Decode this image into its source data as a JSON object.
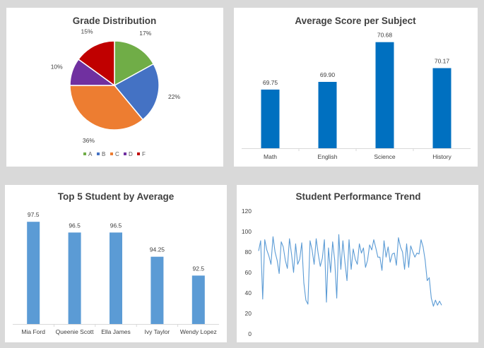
{
  "chart_data": [
    {
      "type": "pie",
      "title": "Grade Distribution",
      "categories": [
        "A",
        "B",
        "C",
        "D",
        "F"
      ],
      "values": [
        17,
        22,
        36,
        10,
        15
      ],
      "labels": [
        "17%",
        "22%",
        "36%",
        "10%",
        "15%"
      ],
      "colors": [
        "#70ad47",
        "#4472c4",
        "#ed7d31",
        "#7030a0",
        "#c00000"
      ],
      "legend": "bottom"
    },
    {
      "type": "bar",
      "title": "Average Score per Subject",
      "categories": [
        "Math",
        "English",
        "Science",
        "History"
      ],
      "values": [
        69.75,
        69.9,
        70.68,
        70.17
      ],
      "labels": [
        "69.75",
        "69.90",
        "70.68",
        "70.17"
      ],
      "ylim": [
        68.6,
        70.8
      ],
      "color": "#0070c0",
      "grid": false
    },
    {
      "type": "bar",
      "title": "Top 5 Student by Average",
      "categories": [
        "Mia Ford",
        "Queenie Scott",
        "Ella James",
        "Ivy Taylor",
        "Wendy Lopez"
      ],
      "values": [
        97.5,
        96.5,
        96.5,
        94.25,
        92.5
      ],
      "labels": [
        "97.5",
        "96.5",
        "96.5",
        "94.25",
        "92.5"
      ],
      "ylim": [
        88,
        98.3
      ],
      "color": "#5b9bd5",
      "grid": false
    },
    {
      "type": "line",
      "title": "Student Performance Trend",
      "x": [
        1,
        2,
        3,
        4,
        5,
        6,
        7,
        8,
        9,
        10,
        11,
        12,
        13,
        14,
        15,
        16,
        17,
        18,
        19,
        20,
        21,
        22,
        23,
        24,
        25,
        26,
        27,
        28,
        29,
        30,
        31,
        32,
        33,
        34,
        35,
        36,
        37,
        38,
        39,
        40,
        41,
        42,
        43,
        44,
        45,
        46,
        47,
        48,
        49,
        50,
        51,
        52,
        53,
        54,
        55,
        56,
        57,
        58,
        59,
        60,
        61,
        62,
        63,
        64,
        65,
        66,
        67,
        68,
        69,
        70,
        71,
        72,
        73,
        74,
        75,
        76,
        77,
        78,
        79,
        80,
        81,
        82,
        83,
        84,
        85,
        86,
        87,
        88,
        89,
        90
      ],
      "values": [
        81,
        91,
        34,
        92,
        82,
        76,
        68,
        95,
        80,
        72,
        59,
        90,
        85,
        72,
        64,
        93,
        78,
        60,
        88,
        68,
        73,
        89,
        50,
        33,
        29,
        91,
        82,
        68,
        93,
        78,
        66,
        74,
        92,
        31,
        84,
        60,
        90,
        72,
        35,
        97,
        63,
        91,
        70,
        52,
        92,
        63,
        83,
        73,
        68,
        88,
        79,
        84,
        65,
        72,
        87,
        82,
        92,
        84,
        75,
        75,
        62,
        91,
        75,
        85,
        70,
        78,
        79,
        67,
        94,
        85,
        80,
        63,
        88,
        65,
        86,
        80,
        75,
        79,
        78,
        92,
        85,
        72,
        52,
        55,
        35,
        27,
        33,
        28,
        32,
        28
      ],
      "ylim": [
        0,
        120
      ],
      "yticks": [
        "0",
        "20",
        "40",
        "60",
        "80",
        "100",
        "120"
      ],
      "color": "#5b9bd5",
      "grid": false
    }
  ]
}
